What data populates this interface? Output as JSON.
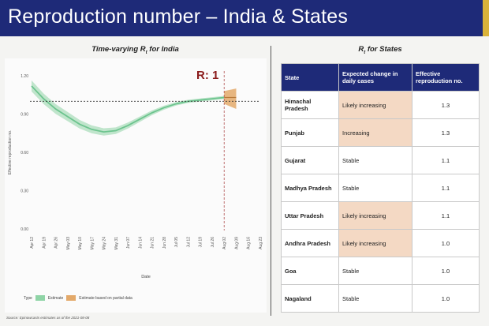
{
  "title": "Reproduction number – India & States",
  "left_panel": {
    "title_main": "Time-varying R",
    "title_sub": "t",
    "title_rest": " for India"
  },
  "right_panel": {
    "title_main": "R",
    "title_sub": "t",
    "title_rest": " for States"
  },
  "r_annotation": "R: 1",
  "legend": {
    "type_label": "Type",
    "estimate_label": "Estimate",
    "partial_label": "Estimate based on partial data",
    "estimate_color": "#8fd4a6",
    "partial_color": "#e3a96a"
  },
  "source": "Source: Epinowcasts estimates as of the 2021-08-08",
  "chart_data": {
    "type": "line",
    "title": "Time-varying Rt for India",
    "xlabel": "Date",
    "ylabel": "Effective reproduction no.",
    "x": [
      "Apr 12",
      "Apr 19",
      "Apr 26",
      "May 03",
      "May 10",
      "May 17",
      "May 24",
      "May 31",
      "Jun 07",
      "Jun 14",
      "Jun 21",
      "Jun 28",
      "Jul 05",
      "Jul 12",
      "Jul 19",
      "Jul 26",
      "Aug 02",
      "Aug 09",
      "Aug 16",
      "Aug 23"
    ],
    "y_ticks": [
      "1.20",
      "0.90",
      "0.60",
      "0.30",
      "0.00"
    ],
    "ylim": [
      0,
      1.2
    ],
    "reference_line": 1.0,
    "estimate": {
      "x": [
        "Apr 12",
        "Apr 19",
        "Apr 26",
        "May 03",
        "May 10",
        "May 17",
        "May 24",
        "May 31",
        "Jun 07",
        "Jun 14",
        "Jun 21",
        "Jun 28",
        "Jul 05",
        "Jul 12",
        "Jul 19",
        "Jul 26",
        "Aug 02"
      ],
      "y": [
        1.12,
        1.02,
        0.94,
        0.88,
        0.82,
        0.78,
        0.76,
        0.77,
        0.81,
        0.86,
        0.91,
        0.95,
        0.98,
        1.0,
        1.01,
        1.02,
        1.03
      ]
    },
    "partial": {
      "x": [
        "Aug 02",
        "Aug 09"
      ],
      "y": [
        1.03,
        1.03
      ],
      "upper": [
        1.08,
        1.1
      ],
      "lower": [
        0.98,
        0.94
      ]
    }
  },
  "table": {
    "headers": [
      "State",
      "Expected change in daily cases",
      "Effective reproduction no."
    ],
    "rows": [
      {
        "state": "Himachal Pradesh",
        "change": "Likely increasing",
        "highlight": true,
        "r": "1.3"
      },
      {
        "state": "Punjab",
        "change": "Increasing",
        "highlight": true,
        "r": "1.3"
      },
      {
        "state": "Gujarat",
        "change": "Stable",
        "highlight": false,
        "r": "1.1"
      },
      {
        "state": "Madhya Pradesh",
        "change": "Stable",
        "highlight": false,
        "r": "1.1"
      },
      {
        "state": "Uttar Pradesh",
        "change": "Likely increasing",
        "highlight": true,
        "r": "1.1"
      },
      {
        "state": "Andhra Pradesh",
        "change": "Likely increasing",
        "highlight": true,
        "r": "1.0"
      },
      {
        "state": "Goa",
        "change": "Stable",
        "highlight": false,
        "r": "1.0"
      },
      {
        "state": "Nagaland",
        "change": "Stable",
        "highlight": false,
        "r": "1.0"
      }
    ]
  }
}
